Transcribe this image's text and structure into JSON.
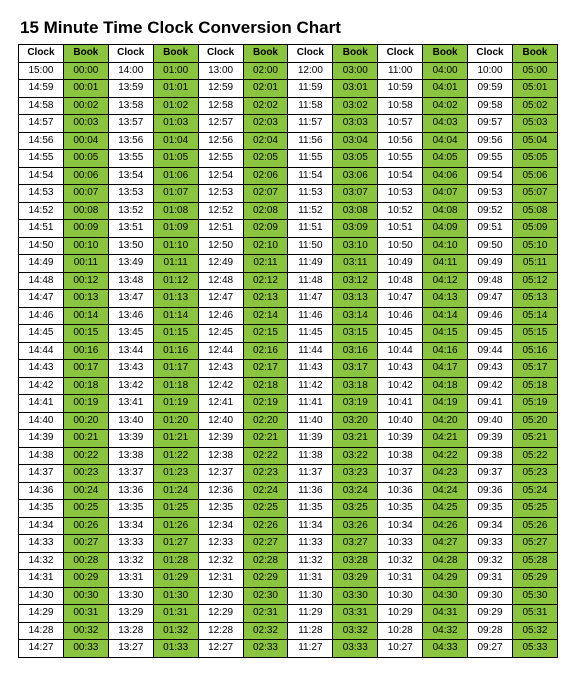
{
  "title": "15 Minute Time Clock Conversion Chart",
  "headers": {
    "clock": "Clock",
    "book": "Book"
  },
  "pairs": 6,
  "clockStart": [
    15,
    14,
    13,
    12,
    11,
    10
  ],
  "bookStart": [
    0,
    1,
    2,
    3,
    4,
    5
  ],
  "rows": 34,
  "colors": {
    "book_bg": "#8bc53f",
    "border": "#000000",
    "clock_bg": "#ffffff"
  },
  "font": {
    "title_size": 17,
    "cell_size": 10
  }
}
